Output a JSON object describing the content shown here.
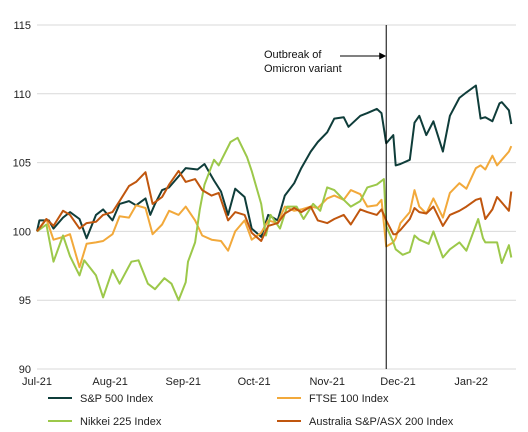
{
  "chart_data": {
    "type": "line",
    "title": "",
    "xlabel": "",
    "ylabel": "",
    "ylim": [
      90,
      115
    ],
    "yticks": [
      90,
      95,
      100,
      105,
      110,
      115
    ],
    "x_range": [
      "2021-07-01",
      "2022-01-20"
    ],
    "x_ticks": [
      {
        "date": "2021-07-01",
        "label": "Jul-21"
      },
      {
        "date": "2021-08-01",
        "label": "Aug-21"
      },
      {
        "date": "2021-09-01",
        "label": "Sep-21"
      },
      {
        "date": "2021-10-01",
        "label": "Oct-21"
      },
      {
        "date": "2021-11-01",
        "label": "Nov-21"
      },
      {
        "date": "2021-12-01",
        "label": "Dec-21"
      },
      {
        "date": "2022-01-01",
        "label": "Jan-22"
      }
    ],
    "grid": "horizontal",
    "legend_position": "bottom",
    "annotation": {
      "lines": [
        "Outbreak of",
        "Omicron variant"
      ],
      "date": "2021-11-26"
    },
    "series": [
      {
        "name": "S&P 500 Index",
        "color": "#0f3d3a",
        "points": [
          [
            "2021-07-01",
            100.0
          ],
          [
            "2021-07-02",
            100.8
          ],
          [
            "2021-07-06",
            100.8
          ],
          [
            "2021-07-08",
            100.2
          ],
          [
            "2021-07-12",
            101.0
          ],
          [
            "2021-07-15",
            101.4
          ],
          [
            "2021-07-19",
            100.9
          ],
          [
            "2021-07-22",
            99.5
          ],
          [
            "2021-07-26",
            101.2
          ],
          [
            "2021-07-29",
            101.6
          ],
          [
            "2021-08-02",
            100.8
          ],
          [
            "2021-08-05",
            102.0
          ],
          [
            "2021-08-09",
            102.2
          ],
          [
            "2021-08-12",
            101.9
          ],
          [
            "2021-08-16",
            102.4
          ],
          [
            "2021-08-18",
            101.2
          ],
          [
            "2021-08-20",
            102.0
          ],
          [
            "2021-08-23",
            103.0
          ],
          [
            "2021-08-26",
            103.2
          ],
          [
            "2021-08-30",
            104.0
          ],
          [
            "2021-09-02",
            104.6
          ],
          [
            "2021-09-07",
            104.5
          ],
          [
            "2021-09-10",
            104.9
          ],
          [
            "2021-09-14",
            103.7
          ],
          [
            "2021-09-17",
            102.9
          ],
          [
            "2021-09-20",
            101.2
          ],
          [
            "2021-09-23",
            103.1
          ],
          [
            "2021-09-27",
            102.5
          ],
          [
            "2021-09-30",
            100.2
          ],
          [
            "2021-10-04",
            99.6
          ],
          [
            "2021-10-07",
            101.2
          ],
          [
            "2021-10-11",
            100.8
          ],
          [
            "2021-10-14",
            102.6
          ],
          [
            "2021-10-18",
            103.5
          ],
          [
            "2021-10-21",
            104.6
          ],
          [
            "2021-10-25",
            105.8
          ],
          [
            "2021-10-28",
            106.5
          ],
          [
            "2021-11-01",
            107.2
          ],
          [
            "2021-11-04",
            108.2
          ],
          [
            "2021-11-08",
            108.3
          ],
          [
            "2021-11-10",
            107.6
          ],
          [
            "2021-11-15",
            108.4
          ],
          [
            "2021-11-18",
            108.6
          ],
          [
            "2021-11-22",
            108.9
          ],
          [
            "2021-11-24",
            108.6
          ],
          [
            "2021-11-26",
            106.4
          ],
          [
            "2021-11-29",
            107.0
          ],
          [
            "2021-11-30",
            104.8
          ],
          [
            "2021-12-02",
            104.9
          ],
          [
            "2021-12-06",
            105.2
          ],
          [
            "2021-12-08",
            107.9
          ],
          [
            "2021-12-10",
            108.4
          ],
          [
            "2021-12-13",
            107.0
          ],
          [
            "2021-12-16",
            108.0
          ],
          [
            "2021-12-20",
            105.8
          ],
          [
            "2021-12-23",
            108.4
          ],
          [
            "2021-12-27",
            109.7
          ],
          [
            "2021-12-30",
            110.1
          ],
          [
            "2022-01-03",
            110.6
          ],
          [
            "2022-01-05",
            108.2
          ],
          [
            "2022-01-07",
            108.3
          ],
          [
            "2022-01-10",
            108.0
          ],
          [
            "2022-01-13",
            109.3
          ],
          [
            "2022-01-14",
            109.4
          ],
          [
            "2022-01-17",
            108.8
          ],
          [
            "2022-01-18",
            107.8
          ]
        ]
      },
      {
        "name": "FTSE 100 Index",
        "color": "#f2a93b",
        "points": [
          [
            "2021-07-01",
            100.0
          ],
          [
            "2021-07-05",
            100.9
          ],
          [
            "2021-07-08",
            99.4
          ],
          [
            "2021-07-12",
            99.6
          ],
          [
            "2021-07-15",
            99.8
          ],
          [
            "2021-07-19",
            97.4
          ],
          [
            "2021-07-22",
            99.1
          ],
          [
            "2021-07-26",
            99.2
          ],
          [
            "2021-07-29",
            99.3
          ],
          [
            "2021-08-02",
            99.8
          ],
          [
            "2021-08-05",
            101.1
          ],
          [
            "2021-08-09",
            101.0
          ],
          [
            "2021-08-12",
            101.9
          ],
          [
            "2021-08-16",
            101.7
          ],
          [
            "2021-08-19",
            99.8
          ],
          [
            "2021-08-23",
            100.5
          ],
          [
            "2021-08-26",
            101.5
          ],
          [
            "2021-08-30",
            101.2
          ],
          [
            "2021-09-02",
            101.8
          ],
          [
            "2021-09-06",
            100.8
          ],
          [
            "2021-09-09",
            99.7
          ],
          [
            "2021-09-13",
            99.4
          ],
          [
            "2021-09-17",
            99.3
          ],
          [
            "2021-09-20",
            98.6
          ],
          [
            "2021-09-23",
            100.0
          ],
          [
            "2021-09-27",
            100.8
          ],
          [
            "2021-09-30",
            99.4
          ],
          [
            "2021-10-04",
            99.9
          ],
          [
            "2021-10-07",
            100.8
          ],
          [
            "2021-10-11",
            100.6
          ],
          [
            "2021-10-14",
            101.8
          ],
          [
            "2021-10-18",
            101.5
          ],
          [
            "2021-10-21",
            101.6
          ],
          [
            "2021-10-25",
            101.8
          ],
          [
            "2021-10-28",
            101.7
          ],
          [
            "2021-11-01",
            102.4
          ],
          [
            "2021-11-04",
            102.6
          ],
          [
            "2021-11-08",
            102.3
          ],
          [
            "2021-11-11",
            103.0
          ],
          [
            "2021-11-15",
            102.7
          ],
          [
            "2021-11-18",
            101.8
          ],
          [
            "2021-11-22",
            101.9
          ],
          [
            "2021-11-24",
            102.3
          ],
          [
            "2021-11-26",
            98.9
          ],
          [
            "2021-11-29",
            99.2
          ],
          [
            "2021-11-30",
            99.5
          ],
          [
            "2021-12-02",
            100.6
          ],
          [
            "2021-12-06",
            101.4
          ],
          [
            "2021-12-08",
            103.0
          ],
          [
            "2021-12-10",
            101.8
          ],
          [
            "2021-12-13",
            101.3
          ],
          [
            "2021-12-16",
            102.4
          ],
          [
            "2021-12-20",
            101.0
          ],
          [
            "2021-12-23",
            102.8
          ],
          [
            "2021-12-27",
            103.5
          ],
          [
            "2021-12-30",
            103.1
          ],
          [
            "2022-01-03",
            104.6
          ],
          [
            "2022-01-05",
            104.8
          ],
          [
            "2022-01-07",
            104.5
          ],
          [
            "2022-01-10",
            105.5
          ],
          [
            "2022-01-12",
            104.8
          ],
          [
            "2022-01-14",
            105.2
          ],
          [
            "2022-01-17",
            105.8
          ],
          [
            "2022-01-18",
            106.2
          ]
        ]
      },
      {
        "name": "Nikkei 225 Index",
        "color": "#9cc84a",
        "points": [
          [
            "2021-07-01",
            100.0
          ],
          [
            "2021-07-05",
            100.5
          ],
          [
            "2021-07-08",
            97.8
          ],
          [
            "2021-07-12",
            99.7
          ],
          [
            "2021-07-15",
            98.2
          ],
          [
            "2021-07-19",
            96.8
          ],
          [
            "2021-07-21",
            97.9
          ],
          [
            "2021-07-26",
            96.8
          ],
          [
            "2021-07-29",
            95.2
          ],
          [
            "2021-08-02",
            97.2
          ],
          [
            "2021-08-05",
            96.2
          ],
          [
            "2021-08-10",
            97.8
          ],
          [
            "2021-08-13",
            97.9
          ],
          [
            "2021-08-17",
            96.2
          ],
          [
            "2021-08-20",
            95.8
          ],
          [
            "2021-08-24",
            96.6
          ],
          [
            "2021-08-27",
            96.2
          ],
          [
            "2021-08-30",
            95.0
          ],
          [
            "2021-09-02",
            96.3
          ],
          [
            "2021-09-03",
            97.8
          ],
          [
            "2021-09-06",
            99.2
          ],
          [
            "2021-09-08",
            101.6
          ],
          [
            "2021-09-10",
            103.4
          ],
          [
            "2021-09-14",
            105.2
          ],
          [
            "2021-09-16",
            104.8
          ],
          [
            "2021-09-21",
            106.5
          ],
          [
            "2021-09-24",
            106.8
          ],
          [
            "2021-09-28",
            105.4
          ],
          [
            "2021-09-30",
            104.4
          ],
          [
            "2021-10-04",
            102.0
          ],
          [
            "2021-10-06",
            99.7
          ],
          [
            "2021-10-08",
            101.2
          ],
          [
            "2021-10-12",
            100.2
          ],
          [
            "2021-10-15",
            101.8
          ],
          [
            "2021-10-19",
            101.8
          ],
          [
            "2021-10-22",
            100.9
          ],
          [
            "2021-10-26",
            102.0
          ],
          [
            "2021-10-29",
            101.5
          ],
          [
            "2021-11-01",
            103.2
          ],
          [
            "2021-11-04",
            103.0
          ],
          [
            "2021-11-08",
            102.3
          ],
          [
            "2021-11-11",
            101.8
          ],
          [
            "2021-11-15",
            102.2
          ],
          [
            "2021-11-18",
            103.2
          ],
          [
            "2021-11-22",
            103.4
          ],
          [
            "2021-11-25",
            103.8
          ],
          [
            "2021-11-26",
            100.4
          ],
          [
            "2021-11-29",
            99.2
          ],
          [
            "2021-11-30",
            98.7
          ],
          [
            "2021-12-03",
            98.3
          ],
          [
            "2021-12-06",
            98.5
          ],
          [
            "2021-12-08",
            99.7
          ],
          [
            "2021-12-10",
            99.4
          ],
          [
            "2021-12-14",
            99.1
          ],
          [
            "2021-12-16",
            100.0
          ],
          [
            "2021-12-20",
            98.1
          ],
          [
            "2021-12-23",
            98.7
          ],
          [
            "2021-12-27",
            99.2
          ],
          [
            "2021-12-30",
            98.6
          ],
          [
            "2022-01-04",
            100.9
          ],
          [
            "2022-01-06",
            99.5
          ],
          [
            "2022-01-07",
            99.2
          ],
          [
            "2022-01-12",
            99.2
          ],
          [
            "2022-01-14",
            97.7
          ],
          [
            "2022-01-17",
            99.0
          ],
          [
            "2022-01-18",
            98.1
          ]
        ]
      },
      {
        "name": "Australia S&P/ASX 200 Index",
        "color": "#c0560e",
        "points": [
          [
            "2021-07-01",
            100.0
          ],
          [
            "2021-07-05",
            100.9
          ],
          [
            "2021-07-08",
            100.4
          ],
          [
            "2021-07-12",
            101.5
          ],
          [
            "2021-07-15",
            101.2
          ],
          [
            "2021-07-19",
            100.2
          ],
          [
            "2021-07-22",
            100.6
          ],
          [
            "2021-07-26",
            100.7
          ],
          [
            "2021-07-29",
            101.2
          ],
          [
            "2021-08-02",
            101.4
          ],
          [
            "2021-08-05",
            102.2
          ],
          [
            "2021-08-09",
            103.3
          ],
          [
            "2021-08-12",
            103.6
          ],
          [
            "2021-08-16",
            104.3
          ],
          [
            "2021-08-19",
            102.0
          ],
          [
            "2021-08-23",
            102.5
          ],
          [
            "2021-08-26",
            103.4
          ],
          [
            "2021-08-30",
            104.4
          ],
          [
            "2021-09-02",
            103.6
          ],
          [
            "2021-09-06",
            103.8
          ],
          [
            "2021-09-09",
            103.0
          ],
          [
            "2021-09-13",
            102.6
          ],
          [
            "2021-09-16",
            102.8
          ],
          [
            "2021-09-20",
            100.8
          ],
          [
            "2021-09-23",
            101.4
          ],
          [
            "2021-09-27",
            101.2
          ],
          [
            "2021-09-30",
            99.9
          ],
          [
            "2021-10-04",
            99.3
          ],
          [
            "2021-10-07",
            100.4
          ],
          [
            "2021-10-11",
            100.6
          ],
          [
            "2021-10-14",
            101.3
          ],
          [
            "2021-10-18",
            101.7
          ],
          [
            "2021-10-21",
            101.4
          ],
          [
            "2021-10-25",
            101.8
          ],
          [
            "2021-10-28",
            100.8
          ],
          [
            "2021-11-01",
            100.6
          ],
          [
            "2021-11-04",
            100.9
          ],
          [
            "2021-11-08",
            101.2
          ],
          [
            "2021-11-11",
            100.5
          ],
          [
            "2021-11-15",
            101.6
          ],
          [
            "2021-11-18",
            101.4
          ],
          [
            "2021-11-22",
            101.2
          ],
          [
            "2021-11-24",
            101.6
          ],
          [
            "2021-11-26",
            100.8
          ],
          [
            "2021-11-29",
            99.8
          ],
          [
            "2021-11-30",
            99.8
          ],
          [
            "2021-12-02",
            100.1
          ],
          [
            "2021-12-06",
            100.9
          ],
          [
            "2021-12-08",
            101.7
          ],
          [
            "2021-12-10",
            101.4
          ],
          [
            "2021-12-13",
            101.3
          ],
          [
            "2021-12-16",
            101.8
          ],
          [
            "2021-12-20",
            100.4
          ],
          [
            "2021-12-23",
            101.2
          ],
          [
            "2021-12-27",
            101.5
          ],
          [
            "2021-12-30",
            101.8
          ],
          [
            "2022-01-03",
            102.3
          ],
          [
            "2022-01-05",
            102.4
          ],
          [
            "2022-01-07",
            100.9
          ],
          [
            "2022-01-10",
            101.6
          ],
          [
            "2022-01-12",
            102.5
          ],
          [
            "2022-01-14",
            102.1
          ],
          [
            "2022-01-17",
            101.5
          ],
          [
            "2022-01-18",
            102.9
          ]
        ]
      }
    ]
  }
}
